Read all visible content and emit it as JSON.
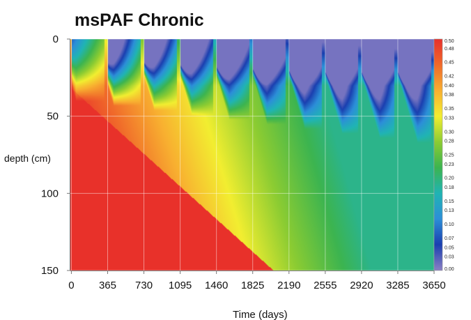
{
  "chart_data": {
    "type": "heatmap",
    "title": "msPAF Chronic",
    "xlabel": "Time (days)",
    "ylabel": "depth (cm)",
    "x_ticks": [
      0,
      365,
      730,
      1095,
      1460,
      1825,
      2190,
      2555,
      2920,
      3285,
      3650
    ],
    "y_ticks": [
      0,
      50,
      100,
      150
    ],
    "xlim": [
      -10,
      3650
    ],
    "ylim": [
      0,
      150
    ],
    "y_inverted": true,
    "grid": true,
    "colorbar": {
      "ticks": [
        "0.00",
        "0.03",
        "0.05",
        "0.07",
        "0.10",
        "0.13",
        "0.15",
        "0.18",
        "0.20",
        "0.23",
        "0.25",
        "0.28",
        "0.30",
        "0.33",
        "0.35",
        "0.38",
        "0.40",
        "0.42",
        "0.45",
        "0.48",
        "0.50"
      ],
      "range": [
        0,
        0.5
      ],
      "colors": [
        "#8a7fc4",
        "#1a3fb0",
        "#2c8fd8",
        "#20b4b4",
        "#3cb450",
        "#8ccc32",
        "#f2ee30",
        "#f8b030",
        "#f06a2a",
        "#e8312a"
      ]
    },
    "pulse_interval_days": 365,
    "pulse_times_days": [
      0,
      365,
      730,
      1095,
      1460,
      1825,
      2190,
      2555,
      2920,
      3285
    ]
  }
}
